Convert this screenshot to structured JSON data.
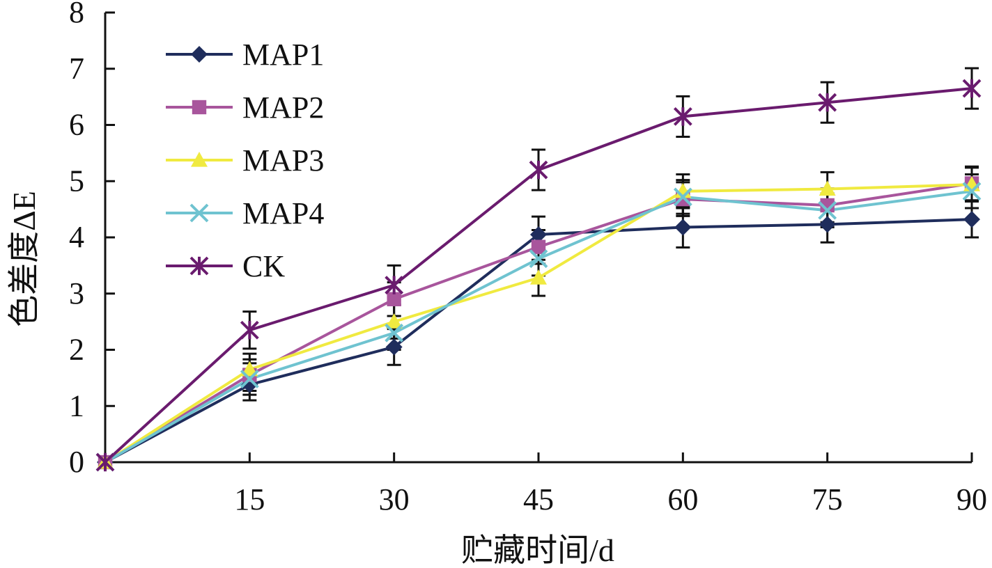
{
  "chart_data": {
    "type": "line",
    "xlabel": "贮藏时间/d",
    "ylabel": "色差度ΔE",
    "x": [
      0,
      15,
      30,
      45,
      60,
      75,
      90
    ],
    "x_tick_labels": [
      "15",
      "30",
      "45",
      "60",
      "75",
      "90"
    ],
    "y_tick_labels": [
      "0",
      "1",
      "2",
      "3",
      "4",
      "5",
      "6",
      "7",
      "8"
    ],
    "xlim": [
      0,
      90
    ],
    "ylim": [
      0,
      8
    ],
    "grid": false,
    "legend_position": "top-left",
    "series": [
      {
        "name": "MAP1",
        "color": "#1f2d5c",
        "marker": "diamond",
        "values": [
          0,
          1.38,
          2.05,
          4.05,
          4.18,
          4.23,
          4.32
        ],
        "error": [
          0,
          0.28,
          0.32,
          0.32,
          0.36,
          0.32,
          0.32
        ]
      },
      {
        "name": "MAP2",
        "color": "#a8559c",
        "marker": "square",
        "values": [
          0,
          1.55,
          2.9,
          3.83,
          4.68,
          4.57,
          4.96
        ],
        "error": [
          0,
          0.28,
          0.3,
          0.3,
          0.3,
          0.3,
          0.3
        ]
      },
      {
        "name": "MAP3",
        "color": "#f0ea40",
        "marker": "triangle",
        "values": [
          0,
          1.65,
          2.5,
          3.28,
          4.82,
          4.86,
          4.94
        ],
        "error": [
          0,
          0.28,
          0.3,
          0.32,
          0.3,
          0.3,
          0.3
        ]
      },
      {
        "name": "MAP4",
        "color": "#6fc3d0",
        "marker": "x",
        "values": [
          0,
          1.48,
          2.3,
          3.62,
          4.72,
          4.48,
          4.82
        ],
        "error": [
          0,
          0.28,
          0.3,
          0.3,
          0.3,
          0.3,
          0.3
        ]
      },
      {
        "name": "CK",
        "color": "#6a1b6e",
        "marker": "star",
        "values": [
          0,
          2.35,
          3.15,
          5.2,
          6.15,
          6.4,
          6.65
        ],
        "error": [
          0,
          0.33,
          0.35,
          0.36,
          0.36,
          0.36,
          0.36
        ]
      }
    ]
  }
}
